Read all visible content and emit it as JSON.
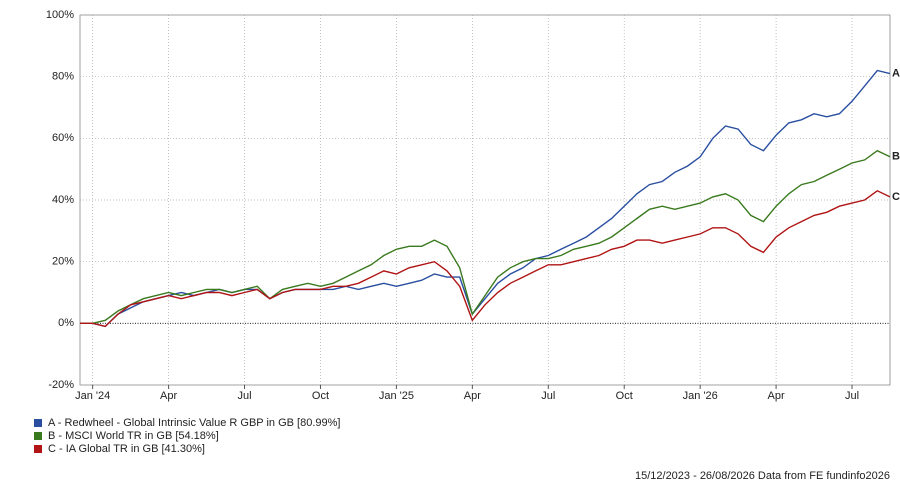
{
  "chart_data": {
    "type": "line",
    "categories": [
      null,
      "Jan '24",
      null,
      null,
      null,
      null,
      null,
      "Apr",
      null,
      null,
      null,
      null,
      null,
      "Jul",
      null,
      null,
      null,
      null,
      null,
      "Oct",
      null,
      null,
      null,
      null,
      null,
      "Jan '25",
      null,
      null,
      null,
      null,
      null,
      "Apr",
      null,
      null,
      null,
      null,
      null,
      "Jul",
      null,
      null,
      null,
      null,
      null,
      "Oct",
      null,
      null,
      null,
      null,
      null,
      "Jan '26",
      null,
      null,
      null,
      null,
      null,
      "Apr",
      null,
      null,
      null,
      null,
      null,
      "Jul",
      null,
      null,
      null
    ],
    "series": [
      {
        "name": "A - Redwheel - Global Intrinsic Value R GBP in GB [80.99%]",
        "label": "A",
        "color": "#2a4fa0",
        "values": [
          0,
          0,
          -1,
          3,
          5,
          7,
          8,
          9,
          10,
          9,
          10,
          11,
          10,
          11,
          11,
          8,
          10,
          11,
          11,
          11,
          11,
          12,
          11,
          12,
          13,
          12,
          13,
          14,
          16,
          15,
          15,
          3,
          8,
          13,
          16,
          18,
          21,
          22,
          24,
          26,
          28,
          31,
          34,
          38,
          42,
          45,
          46,
          49,
          51,
          54,
          60,
          64,
          63,
          58,
          56,
          61,
          65,
          66,
          68,
          67,
          68,
          72,
          77,
          82,
          81
        ]
      },
      {
        "name": "B - MSCI World TR in GB [54.18%]",
        "label": "B",
        "color": "#3a7a1e",
        "values": [
          0,
          0,
          1,
          4,
          6,
          8,
          9,
          10,
          9,
          10,
          11,
          11,
          10,
          11,
          12,
          8,
          11,
          12,
          13,
          12,
          13,
          15,
          17,
          19,
          22,
          24,
          25,
          25,
          27,
          25,
          18,
          3,
          9,
          15,
          18,
          20,
          21,
          21,
          22,
          24,
          25,
          26,
          28,
          31,
          34,
          37,
          38,
          37,
          38,
          39,
          41,
          42,
          40,
          35,
          33,
          38,
          42,
          45,
          46,
          48,
          50,
          52,
          53,
          56,
          54
        ]
      },
      {
        "name": "C - IA Global TR in GB [41.30%]",
        "label": "C",
        "color": "#b01414",
        "values": [
          0,
          0,
          -1,
          3,
          6,
          7,
          8,
          9,
          8,
          9,
          10,
          10,
          9,
          10,
          11,
          8,
          10,
          11,
          11,
          11,
          12,
          12,
          13,
          15,
          17,
          16,
          18,
          19,
          20,
          17,
          12,
          1,
          6,
          10,
          13,
          15,
          17,
          19,
          19,
          20,
          21,
          22,
          24,
          25,
          27,
          27,
          26,
          27,
          28,
          29,
          31,
          31,
          29,
          25,
          23,
          28,
          31,
          33,
          35,
          36,
          38,
          39,
          40,
          43,
          41
        ]
      }
    ],
    "ylim": [
      -20,
      100
    ],
    "yticks": [
      {
        "value": -20,
        "label": "-20%"
      },
      {
        "value": 0,
        "label": "0%"
      },
      {
        "value": 20,
        "label": "20%"
      },
      {
        "value": 40,
        "label": "40%"
      },
      {
        "value": 60,
        "label": "60%"
      },
      {
        "value": 80,
        "label": "80%"
      },
      {
        "value": 100,
        "label": "100%"
      }
    ],
    "grid": true,
    "footer": "15/12/2023 - 26/08/2026 Data from FE fundinfo2026"
  }
}
